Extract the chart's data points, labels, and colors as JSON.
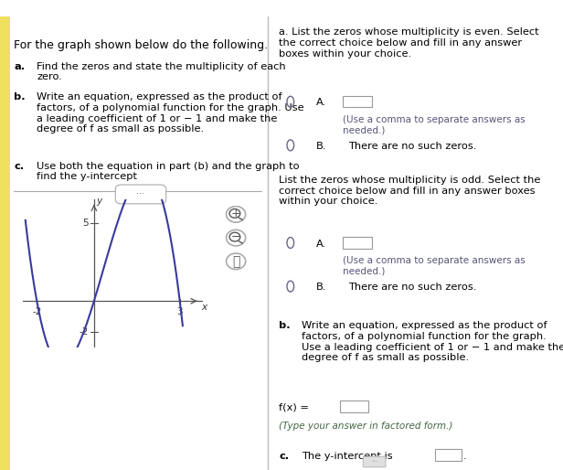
{
  "title_text": "For the graph shown below do the following.",
  "left_text_a": "a. Find the zeros and state the multiplicity of each\nzero.",
  "left_text_b": "b. Write an equation, expressed as the product of\nfactors, of a polynomial function for the graph. Use\na leading coefficient of 1 or − 1 and make the\ndegree of f as small as possible.",
  "left_text_c": "c. Use both the equation in part (b) and the graph to\nfind the y-intercept",
  "right_sec_a_even": "a. List the zeros whose multiplicity is even. Select\nthe correct choice below and fill in any answer\nboxes within your choice.",
  "right_sec_a_odd": "List the zeros whose multiplicity is odd. Select the\ncorrect choice below and fill in any answer boxes\nwithin your choice.",
  "right_sec_b": "b. Write an equation, expressed as the product of\nfactors, of a polynomial function for the graph.\nUse a leading coefficient of 1 or − 1 and make the\ndegree of f as small as possible.",
  "right_sec_c": "c.  The y-intercept is",
  "opt_A_sub": "(Use a comma to separate answers as\nneeded.)",
  "opt_B_text": "There are no such zeros.",
  "fx_label": "f(x) =",
  "factored_hint": "(Type your answer in factored form.)",
  "graph": {
    "xlim": [
      -2.5,
      3.8
    ],
    "ylim": [
      -3.0,
      6.5
    ],
    "xticks": [
      -2,
      3
    ],
    "yticks": [
      5,
      -2
    ],
    "xlabel": "x",
    "ylabel": "y",
    "curve_color": "#3a3a9e",
    "axis_color": "#555555"
  },
  "background_color": "#ffffff",
  "panel_divider_color": "#bbbbbb",
  "text_color": "#000000",
  "subtext_color": "#333333",
  "radio_color": "#555588",
  "header_bg": "#a52020",
  "font_size_title": 9.0,
  "font_size_body": 8.2,
  "font_size_small": 7.5,
  "left_yellow_color": "#f0e060"
}
